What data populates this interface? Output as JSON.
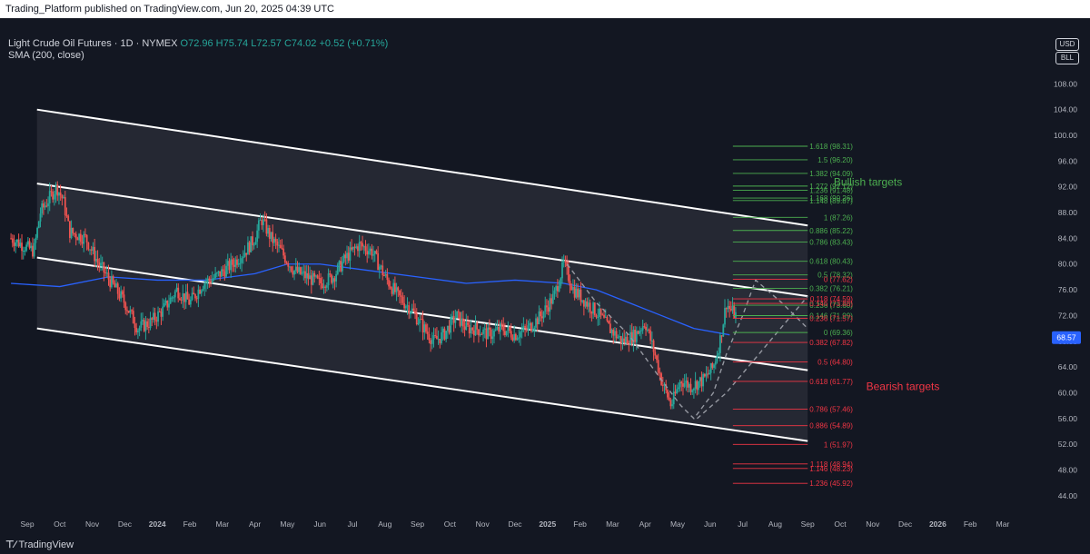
{
  "header_text": "Trading_Platform published on TradingView.com, Jun 20, 2025 04:39 UTC",
  "legend": {
    "symbol": "Light Crude Oil Futures · 1D · NYMEX",
    "open": "O72.96",
    "high": "H75.74",
    "low": "L72.57",
    "close": "C74.02",
    "change": "+0.52 (+0.71%)",
    "indicator": "SMA (200, close)"
  },
  "badges": {
    "currency": "USD",
    "unit": "BLL"
  },
  "footer": {
    "brand": "TradingView"
  },
  "colors": {
    "background": "#131722",
    "up": "#26a69a",
    "down": "#ef5350",
    "sma": "#2962ff",
    "bullish": "#4caf50",
    "bearish": "#f23645",
    "channel": "#ffffff"
  },
  "chart_data": {
    "type": "candlestick",
    "ylim": [
      42,
      112
    ],
    "y_ticks": [
      "44.00",
      "48.00",
      "52.00",
      "56.00",
      "60.00",
      "64.00",
      "68.00",
      "72.00",
      "76.00",
      "80.00",
      "84.00",
      "88.00",
      "92.00",
      "96.00",
      "100.00",
      "104.00",
      "108.00"
    ],
    "x_ticks": [
      "Sep",
      "Oct",
      "Nov",
      "Dec",
      "2024",
      "Feb",
      "Mar",
      "Apr",
      "May",
      "Jun",
      "Jul",
      "Aug",
      "Sep",
      "Oct",
      "Nov",
      "Dec",
      "2025",
      "Feb",
      "Mar",
      "Apr",
      "May",
      "Jun",
      "Jul",
      "Aug",
      "Sep",
      "Oct",
      "Nov",
      "Dec",
      "2026",
      "Feb",
      "Mar"
    ],
    "x_tick_months": [
      0,
      1,
      2,
      3,
      4,
      5,
      6,
      7,
      8,
      9,
      10,
      11,
      12,
      13,
      14,
      15,
      16,
      17,
      18,
      19,
      20,
      21,
      22,
      23,
      24,
      25,
      26,
      27,
      28,
      29,
      30
    ],
    "last_price": {
      "value": 68.57,
      "label": "68.57"
    },
    "price_path": [
      [
        -0.5,
        84
      ],
      [
        0.2,
        82
      ],
      [
        0.4,
        88
      ],
      [
        0.9,
        92
      ],
      [
        1.1,
        90
      ],
      [
        1.3,
        85
      ],
      [
        1.8,
        84
      ],
      [
        2.2,
        80
      ],
      [
        2.6,
        77
      ],
      [
        3.0,
        74
      ],
      [
        3.4,
        70
      ],
      [
        3.8,
        71
      ],
      [
        4.2,
        73
      ],
      [
        4.6,
        76
      ],
      [
        5.0,
        74
      ],
      [
        5.4,
        77
      ],
      [
        5.8,
        78
      ],
      [
        6.3,
        80
      ],
      [
        6.7,
        82
      ],
      [
        7.0,
        84
      ],
      [
        7.2,
        87
      ],
      [
        7.5,
        84
      ],
      [
        7.8,
        82
      ],
      [
        8.2,
        79
      ],
      [
        8.6,
        78
      ],
      [
        9.0,
        77
      ],
      [
        9.4,
        78
      ],
      [
        9.8,
        81
      ],
      [
        10.2,
        83
      ],
      [
        10.6,
        82
      ],
      [
        11.0,
        78
      ],
      [
        11.4,
        75
      ],
      [
        11.8,
        73
      ],
      [
        12.2,
        70
      ],
      [
        12.5,
        68
      ],
      [
        12.8,
        69
      ],
      [
        13.2,
        72
      ],
      [
        13.5,
        70
      ],
      [
        13.8,
        70
      ],
      [
        14.2,
        69
      ],
      [
        14.6,
        70
      ],
      [
        15.0,
        69
      ],
      [
        15.4,
        70
      ],
      [
        15.8,
        72
      ],
      [
        16.2,
        75
      ],
      [
        16.5,
        80
      ],
      [
        16.8,
        76
      ],
      [
        17.2,
        74
      ],
      [
        17.6,
        72
      ],
      [
        17.9,
        70
      ],
      [
        18.3,
        68
      ],
      [
        18.7,
        69
      ],
      [
        19.0,
        71
      ],
      [
        19.3,
        66
      ],
      [
        19.5,
        62
      ],
      [
        19.8,
        58
      ],
      [
        20.1,
        62
      ],
      [
        20.4,
        61
      ],
      [
        20.8,
        62
      ],
      [
        21.1,
        64
      ],
      [
        21.3,
        68
      ],
      [
        21.5,
        74
      ],
      [
        21.6,
        73
      ],
      [
        21.8,
        72
      ]
    ],
    "sma_path": [
      [
        -0.5,
        77
      ],
      [
        1.0,
        76.5
      ],
      [
        2.5,
        78
      ],
      [
        4.0,
        77.5
      ],
      [
        5.5,
        77.5
      ],
      [
        7.0,
        78.5
      ],
      [
        8.0,
        80
      ],
      [
        9.0,
        80
      ],
      [
        10.5,
        79
      ],
      [
        12.0,
        78
      ],
      [
        13.5,
        77
      ],
      [
        15.0,
        77.5
      ],
      [
        16.5,
        77
      ],
      [
        17.5,
        76
      ],
      [
        18.5,
        74
      ],
      [
        19.5,
        72
      ],
      [
        20.5,
        70
      ],
      [
        21.6,
        69
      ]
    ],
    "channels": [
      {
        "name": "channel-upper",
        "from": [
          0.3,
          104
        ],
        "to": [
          24.0,
          86
        ],
        "fill_to": "channel-middle-upper"
      },
      {
        "name": "channel-middle-upper",
        "from": [
          0.3,
          92.5
        ],
        "to": [
          24.0,
          75
        ]
      },
      {
        "name": "channel-middle-lower",
        "from": [
          0.3,
          81
        ],
        "to": [
          24.0,
          63.5
        ]
      },
      {
        "name": "channel-lower",
        "from": [
          0.3,
          70
        ],
        "to": [
          24.0,
          52.5
        ]
      }
    ],
    "dashed_paths": [
      [
        [
          16.6,
          80
        ],
        [
          17.5,
          74
        ],
        [
          18.5,
          69
        ],
        [
          19.5,
          62
        ],
        [
          20.1,
          58
        ],
        [
          20.5,
          56
        ],
        [
          21.1,
          60
        ],
        [
          21.5,
          66
        ],
        [
          22.0,
          72
        ],
        [
          22.4,
          77.5
        ],
        [
          23.2,
          74
        ],
        [
          24.0,
          70
        ]
      ],
      [
        [
          20.6,
          56
        ],
        [
          21.5,
          60
        ],
        [
          22.5,
          66
        ],
        [
          23.5,
          72
        ],
        [
          24.0,
          75
        ]
      ]
    ],
    "fib_start_month": 21.7,
    "fib_end_month": 24.0,
    "fib_bullish": [
      {
        "label": "1.618 (98.31)",
        "value": 98.31
      },
      {
        "label": "1.5 (96.20)",
        "value": 96.2
      },
      {
        "label": "1.382 (94.09)",
        "value": 94.09
      },
      {
        "label": "1.272 (92.12)",
        "value": 92.12
      },
      {
        "label": "1.236 (91.48)",
        "value": 91.48
      },
      {
        "label": "1.168 (90.26)",
        "value": 90.26
      },
      {
        "label": "1.148 (89.87)",
        "value": 89.87
      },
      {
        "label": "1 (87.26)",
        "value": 87.26
      },
      {
        "label": "0.886 (85.22)",
        "value": 85.22
      },
      {
        "label": "0.786 (83.43)",
        "value": 83.43
      },
      {
        "label": "0.618 (80.43)",
        "value": 80.43
      },
      {
        "label": "0.5 (78.32)",
        "value": 78.32
      },
      {
        "label": "0.382 (76.21)",
        "value": 76.21
      },
      {
        "label": "0.236 (73.60)",
        "value": 73.6
      },
      {
        "label": "0.146 (71.99)",
        "value": 71.99
      },
      {
        "label": "0 (69.36)",
        "value": 69.36
      }
    ],
    "fib_bearish": [
      {
        "label": "0 (77.62)",
        "value": 77.62
      },
      {
        "label": "0.118 (74.59)",
        "value": 74.59
      },
      {
        "label": "0.146 (73.88)",
        "value": 73.88
      },
      {
        "label": "0.236 (71.57)",
        "value": 71.57
      },
      {
        "label": "0.382 (67.82)",
        "value": 67.82
      },
      {
        "label": "0.5 (64.80)",
        "value": 64.8
      },
      {
        "label": "0.618 (61.77)",
        "value": 61.77
      },
      {
        "label": "0.786 (57.46)",
        "value": 57.46
      },
      {
        "label": "0.886 (54.89)",
        "value": 54.89
      },
      {
        "label": "1 (51.97)",
        "value": 51.97
      },
      {
        "label": "1.118 (48.94)",
        "value": 48.94
      },
      {
        "label": "1.146 (48.23)",
        "value": 48.23
      },
      {
        "label": "1.236 (45.92)",
        "value": 45.92
      }
    ],
    "annotations": [
      {
        "text": "Bullish targets",
        "color": "#4caf50",
        "month": 24.8,
        "value": 92.2
      },
      {
        "text": "Bearish targets",
        "color": "#f23645",
        "month": 25.8,
        "value": 60.4
      }
    ]
  }
}
